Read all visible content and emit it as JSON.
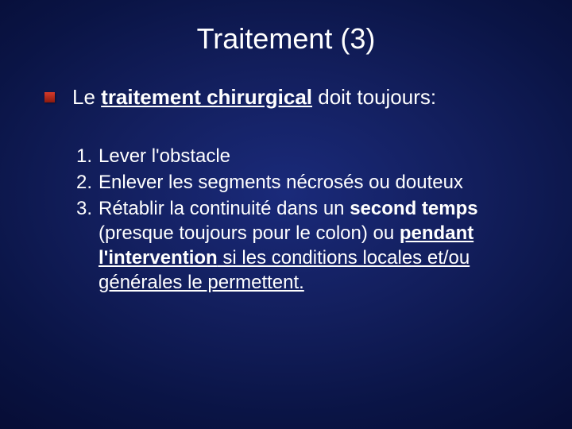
{
  "colors": {
    "background_center": "#1a2a7a",
    "background_edge": "#050a2e",
    "text": "#ffffff",
    "bullet_top": "#d63a2a",
    "bullet_bottom": "#8b1a0f"
  },
  "typography": {
    "title_fontsize": 36,
    "intro_fontsize": 26,
    "list_fontsize": 24,
    "font_family": "Arial"
  },
  "title": "Traitement (3)",
  "intro": {
    "pre": "Le ",
    "underlined_bold": "traitement chirurgical",
    "post": " doit toujours:"
  },
  "list": [
    {
      "num": "1.",
      "text": "Lever l'obstacle"
    },
    {
      "num": "2.",
      "text": "Enlever les segments nécrosés ou douteux"
    },
    {
      "num": "3.",
      "seg1": "Rétablir la continuité dans un ",
      "bold1": "second temps",
      "seg2": " (presque toujours pour le colon) ou ",
      "bold2": "pendant l'intervention",
      "seg3_underlined": " si les conditions locales et/ou générales le permettent."
    }
  ]
}
